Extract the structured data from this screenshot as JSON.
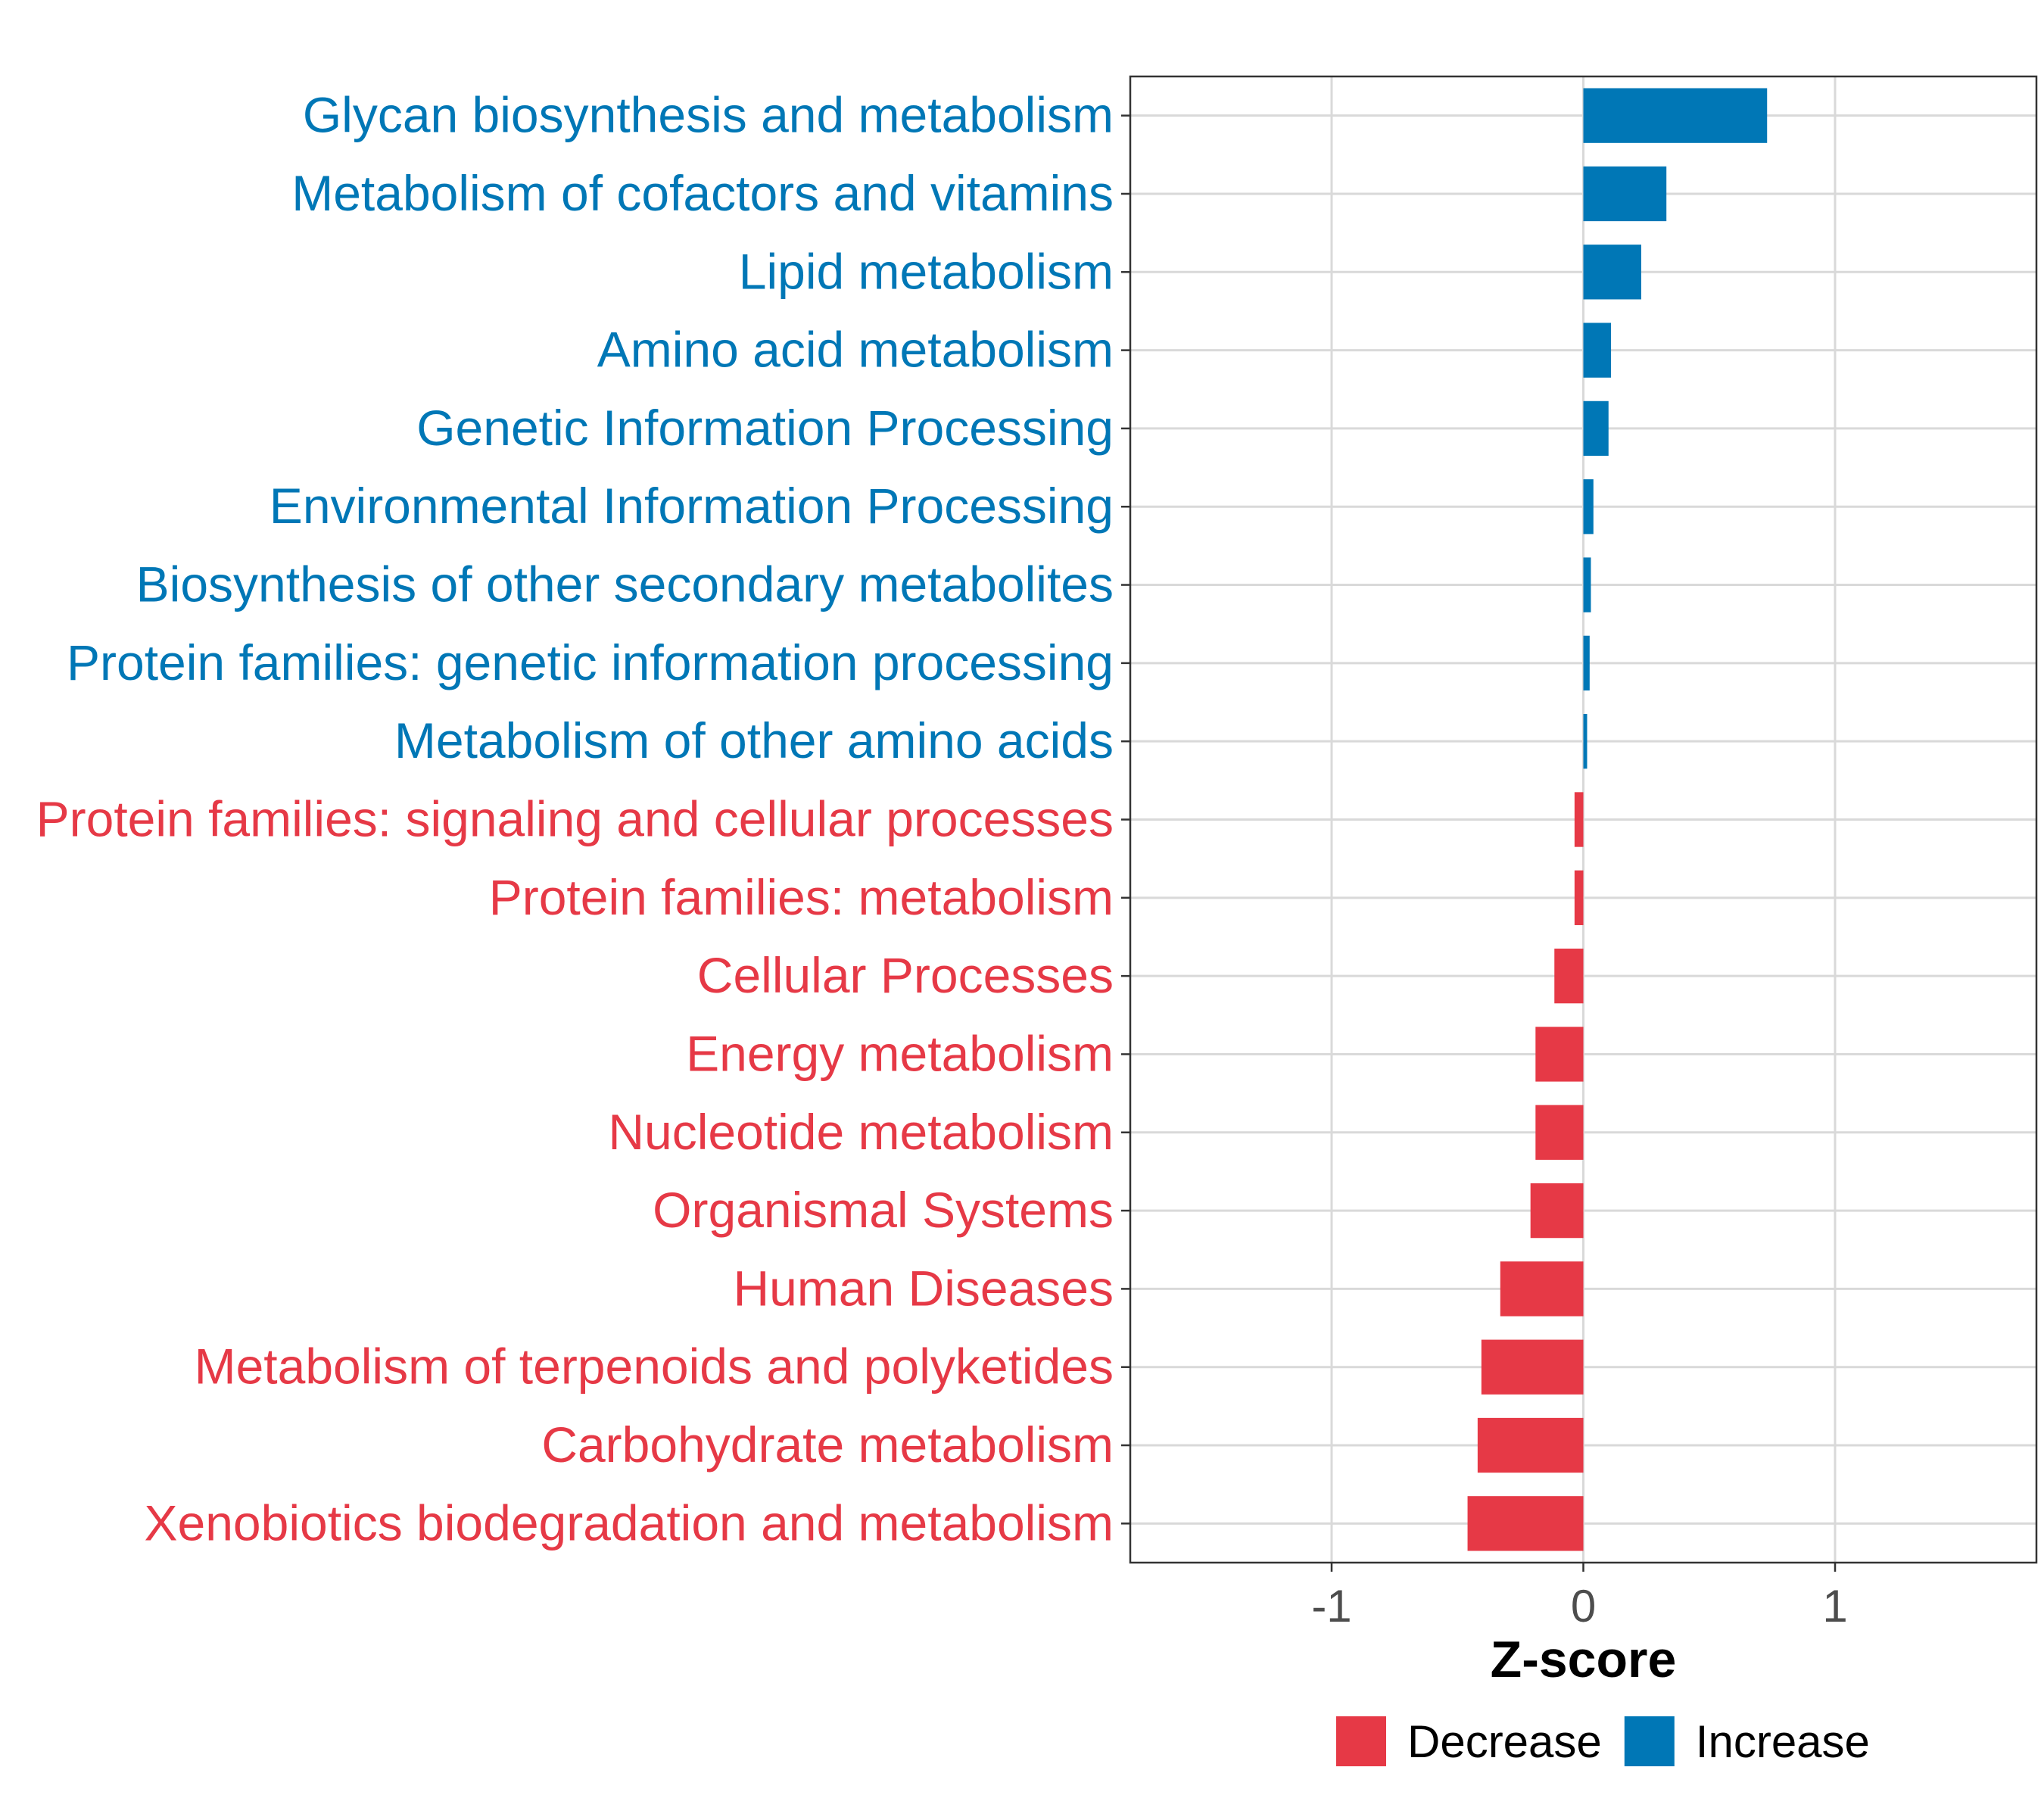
{
  "chart_data": {
    "type": "bar",
    "orientation": "horizontal",
    "xlabel": "Z-score",
    "ylabel": "",
    "xlim": [
      -1.8,
      1.8
    ],
    "xticks": [
      -1,
      0,
      1
    ],
    "xtick_labels": [
      "-1",
      "0",
      "1"
    ],
    "grid": true,
    "legend_position": "bottom",
    "legend": [
      {
        "label": "Decrease",
        "color": "#E63946"
      },
      {
        "label": "Increase",
        "color": "#0077B6"
      }
    ],
    "categories": [
      "Glycan biosynthesis and metabolism",
      "Metabolism of cofactors and vitamins",
      "Lipid metabolism",
      "Amino acid metabolism",
      "Genetic Information Processing",
      "Environmental Information Processing",
      "Biosynthesis of other secondary metabolites",
      "Protein families: genetic information processing",
      "Metabolism of other amino acids",
      "Protein families: signaling and cellular processes",
      "Protein families: metabolism",
      "Cellular Processes",
      "Energy metabolism",
      "Nucleotide metabolism",
      "Organismal Systems",
      "Human Diseases",
      "Metabolism of terpenoids and polyketides",
      "Carbohydrate metabolism",
      "Xenobiotics biodegradation and metabolism"
    ],
    "values": [
      0.73,
      0.33,
      0.23,
      0.11,
      0.1,
      0.04,
      0.03,
      0.025,
      0.015,
      -0.035,
      -0.035,
      -0.115,
      -0.19,
      -0.19,
      -0.21,
      -0.33,
      -0.405,
      -0.42,
      -0.46
    ],
    "groups": [
      "Increase",
      "Increase",
      "Increase",
      "Increase",
      "Increase",
      "Increase",
      "Increase",
      "Increase",
      "Increase",
      "Decrease",
      "Decrease",
      "Decrease",
      "Decrease",
      "Decrease",
      "Decrease",
      "Decrease",
      "Decrease",
      "Decrease",
      "Decrease"
    ]
  }
}
